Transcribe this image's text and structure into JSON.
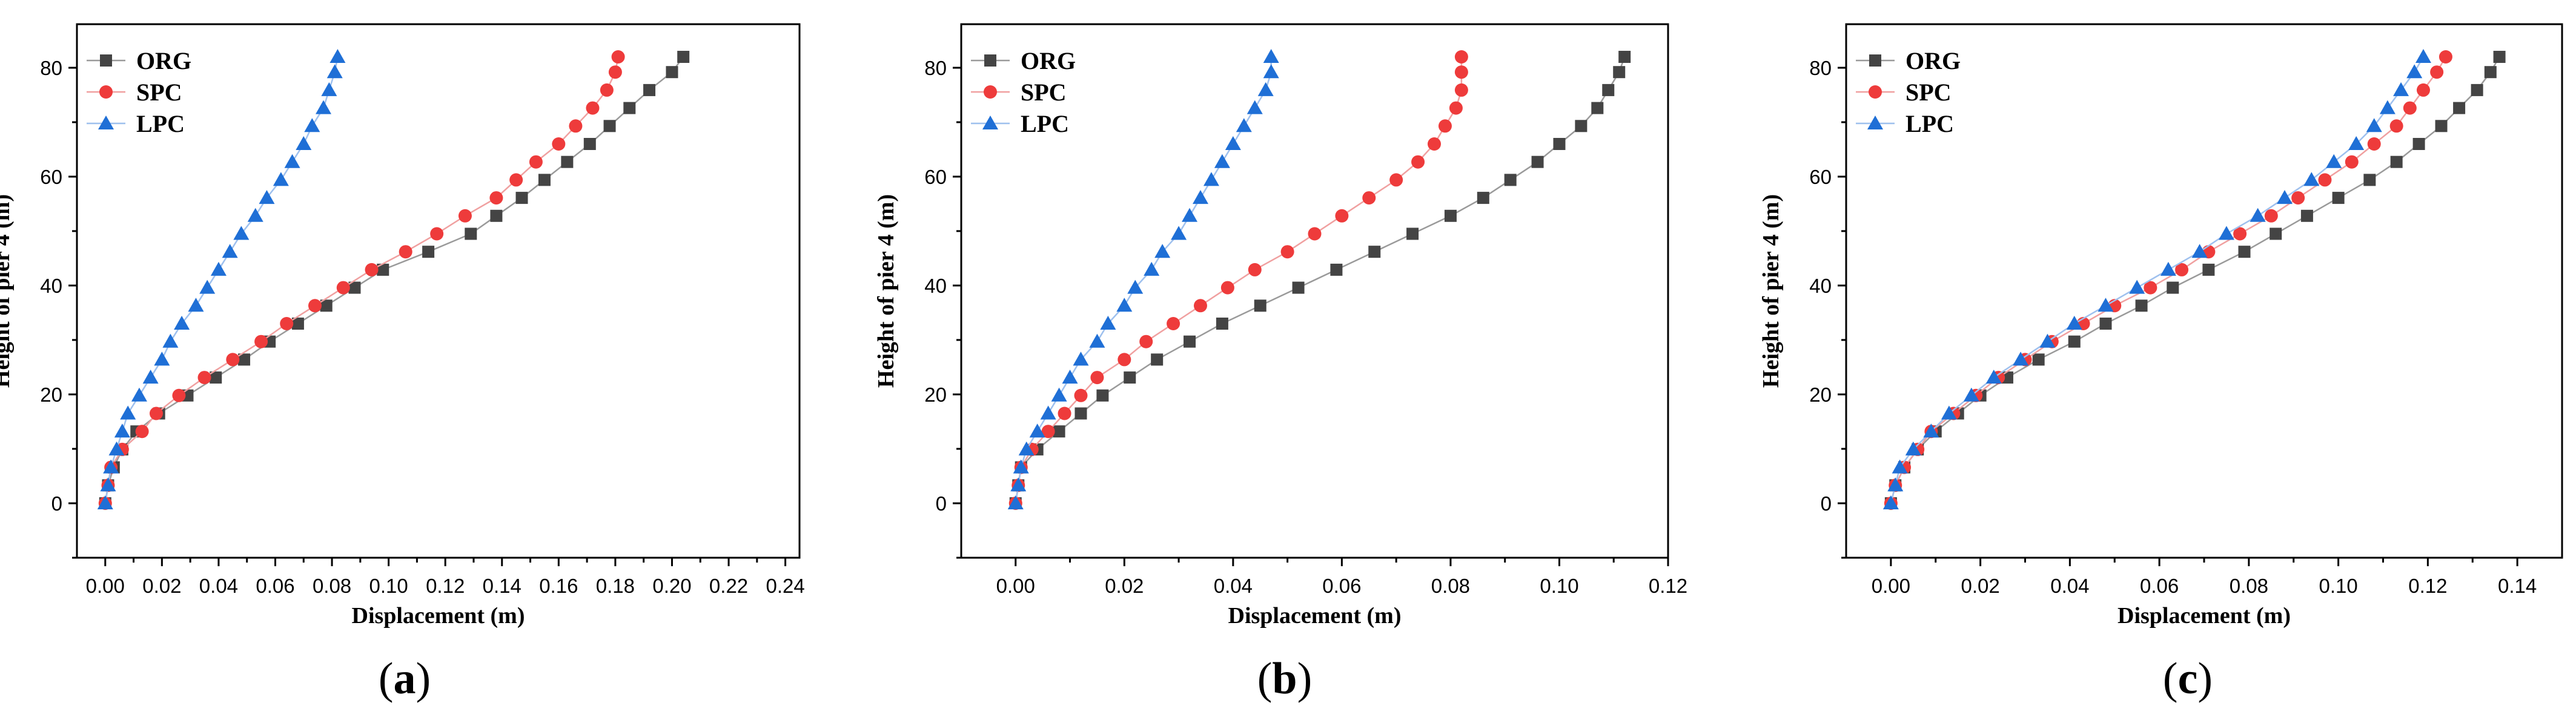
{
  "colors": {
    "ORG": "#444444",
    "SPC": "#ee3b3b",
    "ORG_line": "#9a9a9a",
    "SPC_line": "#f0a0a0",
    "LPC": "#1f6fd6",
    "LPC_line": "#9ec0ee"
  },
  "chart_data": [
    {
      "type": "line",
      "panel_label": "(a)",
      "panel_letter": "a",
      "xlabel": "Displacement (m)",
      "ylabel": "Height of pier 4 (m)",
      "xlim": [
        -0.01,
        0.245
      ],
      "ylim": [
        -10,
        88
      ],
      "xticks": [
        0,
        0.02,
        0.04,
        0.06,
        0.08,
        0.1,
        0.12,
        0.14,
        0.16,
        0.18,
        0.2,
        0.22,
        0.24
      ],
      "xtick_labels": [
        "0.00",
        "0.02",
        "0.04",
        "0.06",
        "0.08",
        "0.10",
        "0.12",
        "0.14",
        "0.16",
        "0.18",
        "0.20",
        "0.22",
        "0.24"
      ],
      "yticks": [
        0,
        20,
        40,
        60,
        80
      ],
      "ytick_labels": [
        "0",
        "20",
        "40",
        "60",
        "80"
      ],
      "legend": [
        "ORG",
        "SPC",
        "LPC"
      ],
      "heights": [
        0,
        3.3,
        6.6,
        9.9,
        13.2,
        16.5,
        19.8,
        23.1,
        26.4,
        29.7,
        33.0,
        36.3,
        39.6,
        42.9,
        46.2,
        49.5,
        52.8,
        56.1,
        59.4,
        62.7,
        66.0,
        69.3,
        72.6,
        75.9,
        79.2,
        82.0
      ],
      "series": [
        {
          "name": "ORG",
          "marker": "square",
          "x": [
            0,
            0.001,
            0.003,
            0.006,
            0.011,
            0.019,
            0.029,
            0.039,
            0.049,
            0.058,
            0.068,
            0.078,
            0.088,
            0.098,
            0.114,
            0.129,
            0.138,
            0.147,
            0.155,
            0.163,
            0.171,
            0.178,
            0.185,
            0.192,
            0.2,
            0.204
          ]
        },
        {
          "name": "SPC",
          "marker": "circle",
          "x": [
            0,
            0.001,
            0.002,
            0.006,
            0.013,
            0.018,
            0.026,
            0.035,
            0.045,
            0.055,
            0.064,
            0.074,
            0.084,
            0.094,
            0.106,
            0.117,
            0.127,
            0.138,
            0.145,
            0.152,
            0.16,
            0.166,
            0.172,
            0.177,
            0.18,
            0.181
          ]
        },
        {
          "name": "LPC",
          "marker": "triangle",
          "x": [
            0,
            0.001,
            0.002,
            0.004,
            0.006,
            0.008,
            0.012,
            0.016,
            0.02,
            0.023,
            0.027,
            0.032,
            0.036,
            0.04,
            0.044,
            0.048,
            0.053,
            0.057,
            0.062,
            0.066,
            0.07,
            0.073,
            0.077,
            0.079,
            0.081,
            0.082
          ]
        }
      ]
    },
    {
      "type": "line",
      "panel_label": "(b)",
      "panel_letter": "b",
      "xlabel": "Displacement (m)",
      "ylabel": "Height of pier 4 (m)",
      "xlim": [
        -0.01,
        0.12
      ],
      "ylim": [
        -10,
        88
      ],
      "xticks": [
        0,
        0.02,
        0.04,
        0.06,
        0.08,
        0.1,
        0.12
      ],
      "xtick_labels": [
        "0.00",
        "0.02",
        "0.04",
        "0.06",
        "0.08",
        "0.10",
        "0.12"
      ],
      "yticks": [
        0,
        20,
        40,
        60,
        80
      ],
      "ytick_labels": [
        "0",
        "20",
        "40",
        "60",
        "80"
      ],
      "legend": [
        "ORG",
        "SPC",
        "LPC"
      ],
      "heights": [
        0,
        3.3,
        6.6,
        9.9,
        13.2,
        16.5,
        19.8,
        23.1,
        26.4,
        29.7,
        33.0,
        36.3,
        39.6,
        42.9,
        46.2,
        49.5,
        52.8,
        56.1,
        59.4,
        62.7,
        66.0,
        69.3,
        72.6,
        75.9,
        79.2,
        82.0
      ],
      "series": [
        {
          "name": "ORG",
          "marker": "square",
          "x": [
            0,
            0.0005,
            0.001,
            0.004,
            0.008,
            0.012,
            0.016,
            0.021,
            0.026,
            0.032,
            0.038,
            0.045,
            0.052,
            0.059,
            0.066,
            0.073,
            0.08,
            0.086,
            0.091,
            0.096,
            0.1,
            0.104,
            0.107,
            0.109,
            0.111,
            0.112
          ]
        },
        {
          "name": "SPC",
          "marker": "circle",
          "x": [
            0,
            0.0005,
            0.001,
            0.003,
            0.006,
            0.009,
            0.012,
            0.015,
            0.02,
            0.024,
            0.029,
            0.034,
            0.039,
            0.044,
            0.05,
            0.055,
            0.06,
            0.065,
            0.07,
            0.074,
            0.077,
            0.079,
            0.081,
            0.082,
            0.082,
            0.082
          ]
        },
        {
          "name": "LPC",
          "marker": "triangle",
          "x": [
            0,
            0.0005,
            0.001,
            0.002,
            0.004,
            0.006,
            0.008,
            0.01,
            0.012,
            0.015,
            0.017,
            0.02,
            0.022,
            0.025,
            0.027,
            0.03,
            0.032,
            0.034,
            0.036,
            0.038,
            0.04,
            0.042,
            0.044,
            0.046,
            0.047,
            0.047
          ]
        }
      ]
    },
    {
      "type": "line",
      "panel_label": "(c)",
      "panel_letter": "c",
      "xlabel": "Displacement (m)",
      "ylabel": "Height of pier 4 (m)",
      "xlim": [
        -0.01,
        0.15
      ],
      "ylim": [
        -10,
        88
      ],
      "xticks": [
        0,
        0.02,
        0.04,
        0.06,
        0.08,
        0.1,
        0.12,
        0.14
      ],
      "xtick_labels": [
        "0.00",
        "0.02",
        "0.04",
        "0.06",
        "0.08",
        "0.10",
        "0.12",
        "0.14"
      ],
      "yticks": [
        0,
        20,
        40,
        60,
        80
      ],
      "ytick_labels": [
        "0",
        "20",
        "40",
        "60",
        "80"
      ],
      "legend": [
        "ORG",
        "SPC",
        "LPC"
      ],
      "heights": [
        0,
        3.3,
        6.6,
        9.9,
        13.2,
        16.5,
        19.8,
        23.1,
        26.4,
        29.7,
        33.0,
        36.3,
        39.6,
        42.9,
        46.2,
        49.5,
        52.8,
        56.1,
        59.4,
        62.7,
        66.0,
        69.3,
        72.6,
        75.9,
        79.2,
        82.0
      ],
      "series": [
        {
          "name": "ORG",
          "marker": "square",
          "x": [
            0,
            0.001,
            0.003,
            0.006,
            0.01,
            0.015,
            0.02,
            0.026,
            0.033,
            0.041,
            0.048,
            0.056,
            0.063,
            0.071,
            0.079,
            0.086,
            0.093,
            0.1,
            0.107,
            0.113,
            0.118,
            0.123,
            0.127,
            0.131,
            0.134,
            0.136
          ]
        },
        {
          "name": "SPC",
          "marker": "circle",
          "x": [
            0,
            0.001,
            0.003,
            0.006,
            0.009,
            0.014,
            0.019,
            0.024,
            0.03,
            0.036,
            0.043,
            0.05,
            0.058,
            0.065,
            0.071,
            0.078,
            0.085,
            0.091,
            0.097,
            0.103,
            0.108,
            0.113,
            0.116,
            0.119,
            0.122,
            0.124
          ]
        },
        {
          "name": "LPC",
          "marker": "triangle",
          "x": [
            0,
            0.001,
            0.002,
            0.005,
            0.009,
            0.013,
            0.018,
            0.023,
            0.029,
            0.035,
            0.041,
            0.048,
            0.055,
            0.062,
            0.069,
            0.075,
            0.082,
            0.088,
            0.094,
            0.099,
            0.104,
            0.108,
            0.111,
            0.114,
            0.117,
            0.119
          ]
        }
      ]
    }
  ]
}
